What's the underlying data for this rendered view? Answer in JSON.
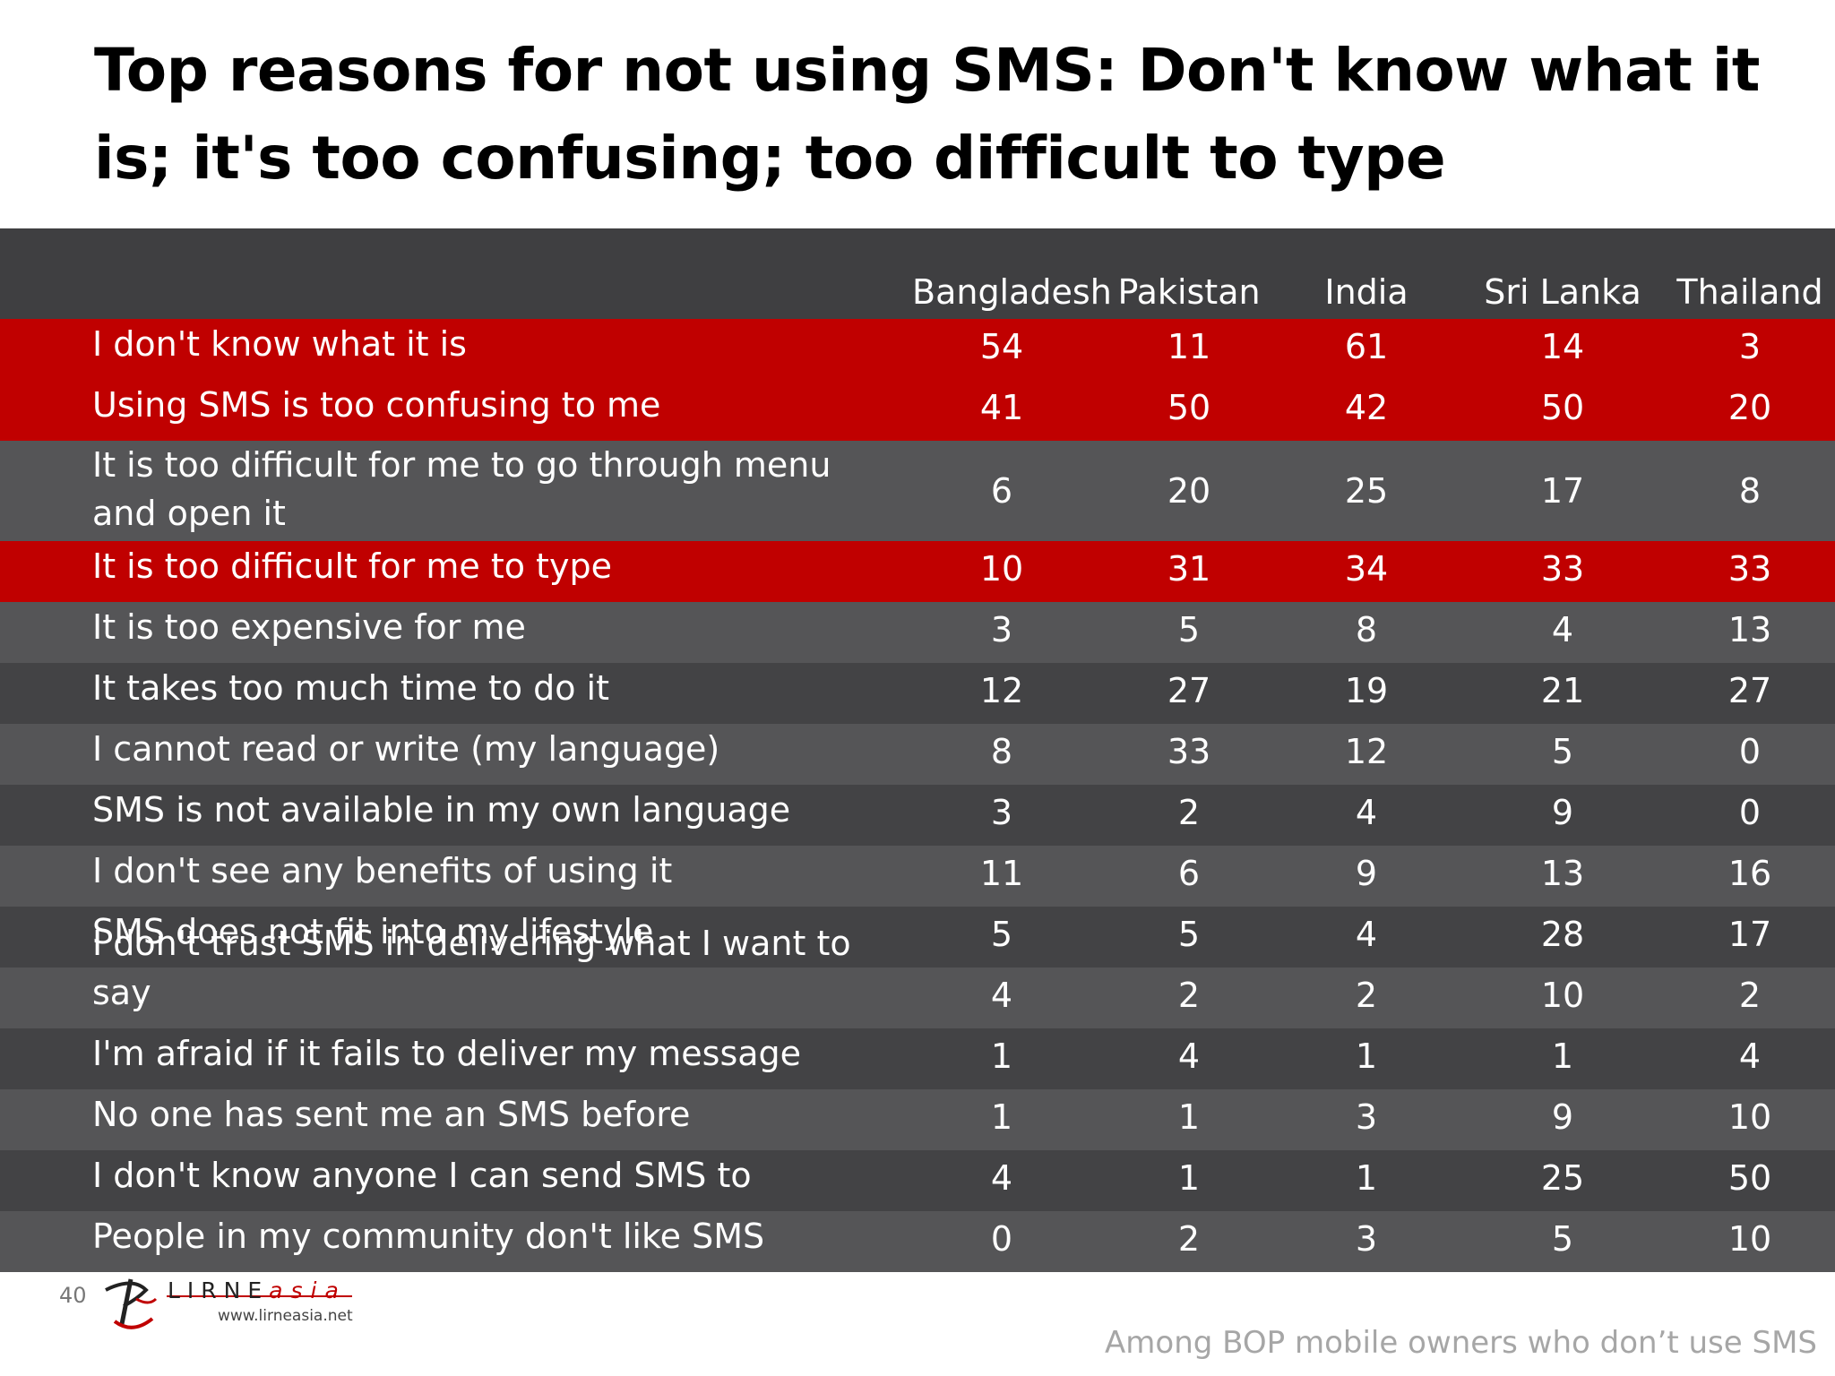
{
  "title": "Top reasons for not using SMS: Don't know what it is; it's too confusing; too difficult to type",
  "columns": [
    "Bangladesh",
    "Pakistan",
    "India",
    "Sri Lanka",
    "Thailand"
  ],
  "rows": [
    {
      "label": "I don't know what it is",
      "values": [
        "54",
        "11",
        "61",
        "14",
        "3"
      ],
      "highlight": true
    },
    {
      "label": "Using SMS is too confusing to me",
      "values": [
        "41",
        "50",
        "42",
        "50",
        "20"
      ],
      "highlight": true
    },
    {
      "label": "It is too difficult for me to go through menu and open it",
      "values": [
        "6",
        "20",
        "25",
        "17",
        "8"
      ],
      "highlight": false
    },
    {
      "label": "It is too difficult for me to type",
      "values": [
        "10",
        "31",
        "34",
        "33",
        "33"
      ],
      "highlight": true
    },
    {
      "label": "It is too expensive for me",
      "values": [
        "3",
        "5",
        "8",
        "4",
        "13"
      ],
      "highlight": false
    },
    {
      "label": "It takes too much time to do it",
      "values": [
        "12",
        "27",
        "19",
        "21",
        "27"
      ],
      "highlight": false
    },
    {
      "label": "I cannot read or write (my language)",
      "values": [
        "8",
        "33",
        "12",
        "5",
        "0"
      ],
      "highlight": false
    },
    {
      "label": "SMS is not available in my own language",
      "values": [
        "3",
        "2",
        "4",
        "9",
        "0"
      ],
      "highlight": false
    },
    {
      "label": "I don't see any benefits of using it",
      "values": [
        "11",
        "6",
        "9",
        "13",
        "16"
      ],
      "highlight": false
    },
    {
      "label": "SMS does not fit into my lifestyle",
      "values": [
        "5",
        "5",
        "4",
        "28",
        "17"
      ],
      "highlight": false
    },
    {
      "label": "I don't trust SMS in delivering what I want to say",
      "values": [
        "4",
        "2",
        "2",
        "10",
        "2"
      ],
      "highlight": false
    },
    {
      "label": "I'm afraid if it fails to deliver my message",
      "values": [
        "1",
        "4",
        "1",
        "1",
        "4"
      ],
      "highlight": false
    },
    {
      "label": "No one has sent me an SMS before",
      "values": [
        "1",
        "1",
        "3",
        "9",
        "10"
      ],
      "highlight": false
    },
    {
      "label": "I don't know anyone I can send SMS to",
      "values": [
        "4",
        "1",
        "1",
        "25",
        "50"
      ],
      "highlight": false
    },
    {
      "label": "People in my community don't like SMS",
      "values": [
        "0",
        "2",
        "3",
        "5",
        "10"
      ],
      "highlight": false
    }
  ],
  "footer": {
    "page_number": "40",
    "logo_brand": "LIRNE",
    "logo_brand_suffix": "asia",
    "logo_url": "www.lirneasia.net",
    "note": "Among BOP mobile owners who don’t use SMS"
  },
  "colors": {
    "highlight": "#c00000",
    "header_bg": "#3f3f41",
    "row_light": "#555557",
    "row_dark": "#434345"
  }
}
